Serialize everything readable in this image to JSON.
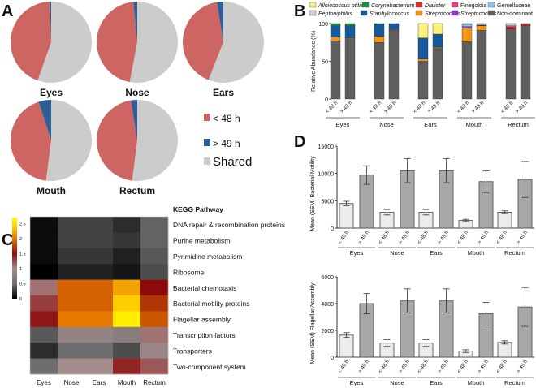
{
  "panels": {
    "a": "A",
    "b": "B",
    "c": "C",
    "d": "D"
  },
  "chart_data": [
    {
      "type": "pie",
      "panel": "A",
      "legend": [
        {
          "label": "< 48 h",
          "color": "#cd6662"
        },
        {
          "label": "> 49 h",
          "color": "#2b5f96"
        },
        {
          "label": "Shared",
          "color": "#cccccc"
        }
      ],
      "pies": [
        {
          "name": "Eyes",
          "values": {
            "shared": 55.4,
            "lt48": 44.0,
            "gt49": 0.6
          }
        },
        {
          "name": "Nose",
          "values": {
            "shared": 53.0,
            "lt48": 45.5,
            "gt49": 1.5
          }
        },
        {
          "name": "Ears",
          "values": {
            "shared": 56.0,
            "lt48": 41.5,
            "gt49": 2.5
          }
        },
        {
          "name": "Mouth",
          "values": {
            "shared": 52.0,
            "lt48": 43.0,
            "gt49": 5.0
          }
        },
        {
          "name": "Rectum",
          "values": {
            "shared": 52.0,
            "lt48": 45.5,
            "gt49": 2.5
          }
        }
      ]
    },
    {
      "type": "bar",
      "stacked": true,
      "panel": "B",
      "ylabel": "Relative Abundance (%)",
      "ylim": [
        0,
        100
      ],
      "yticks": [
        "0",
        "50",
        "100"
      ],
      "legend": [
        {
          "key": "allo",
          "label": "Alloiococcus otitis",
          "color": "#fbf27c",
          "italic": true
        },
        {
          "key": "coryne",
          "label": "Corynebacterium",
          "color": "#14923c",
          "italic": true
        },
        {
          "key": "dial",
          "label": "Dialister",
          "color": "#ee2a1c",
          "italic": true
        },
        {
          "key": "fine",
          "label": "Finegoldia",
          "color": "#ee3a8c",
          "italic": false
        },
        {
          "key": "gem",
          "label": "Gemellaceae",
          "color": "#7ecbf0",
          "italic": false
        },
        {
          "key": "pepto",
          "label": "Peptoniphilus",
          "color": "#cfcfcf",
          "italic": true
        },
        {
          "key": "staph",
          "label": "Staphylococcus",
          "color": "#155a9c",
          "italic": true
        },
        {
          "key": "strep",
          "label": "Streptococcus",
          "color": "#f7930f",
          "italic": true
        },
        {
          "key": "strep2",
          "label": "Streptococcus",
          "color": "#8c3bd6",
          "italic": true
        },
        {
          "key": "nondom",
          "label": "Non-dominant",
          "color": "#5f5f5f",
          "italic": false
        }
      ],
      "stack_order": [
        "nondom",
        "strep",
        "strep2",
        "staph",
        "coryne",
        "allo",
        "gem",
        "dial",
        "fine",
        "pepto"
      ],
      "groups": [
        {
          "name": "Eyes",
          "bars": [
            {
              "label": "< 48 h",
              "values": {
                "nondom": 77,
                "strep": 5,
                "staph": 15,
                "coryne": 3
              }
            },
            {
              "label": "> 49 h",
              "values": {
                "nondom": 80,
                "strep": 1,
                "staph": 16,
                "coryne": 3
              }
            }
          ]
        },
        {
          "name": "Nose",
          "bars": [
            {
              "label": "< 48 h",
              "values": {
                "nondom": 75,
                "strep": 8,
                "staph": 16,
                "coryne": 1
              }
            },
            {
              "label": "> 49 h",
              "values": {
                "nondom": 91,
                "strep": 1,
                "staph": 8
              }
            }
          ]
        },
        {
          "name": "Ears",
          "bars": [
            {
              "label": "< 48 h",
              "values": {
                "nondom": 50,
                "strep": 3,
                "staph": 28,
                "allo": 19
              }
            },
            {
              "label": "> 49 h",
              "values": {
                "nondom": 68,
                "strep": 1,
                "staph": 17,
                "allo": 14
              }
            }
          ]
        },
        {
          "name": "Mouth",
          "bars": [
            {
              "label": "< 48 h",
              "values": {
                "nondom": 76,
                "strep": 18,
                "strep2": 2,
                "gem": 3,
                "pepto": 1
              }
            },
            {
              "label": "> 49 h",
              "values": {
                "nondom": 91,
                "strep": 6,
                "staph": 1,
                "pepto": 2
              }
            }
          ]
        },
        {
          "name": "Rectum",
          "bars": [
            {
              "label": "< 48 h",
              "values": {
                "nondom": 93,
                "dial": 2,
                "fine": 2,
                "pepto": 3
              }
            },
            {
              "label": "> 49 h",
              "values": {
                "nondom": 97,
                "dial": 2,
                "pepto": 1
              }
            }
          ]
        }
      ]
    },
    {
      "type": "heatmap",
      "panel": "C",
      "title": "KEGG Pathway",
      "columns": [
        "Eyes",
        "Nose",
        "Ears",
        "Mouth",
        "Rectum"
      ],
      "rows": [
        "DNA repair & recombination proteins",
        "Purine metabolism",
        "Pyrimidine metabolism",
        "Ribosome",
        "Bacterial chemotaxis",
        "Bacterial motility proteins",
        "Flagellar assembly",
        "Transcription factors",
        "Transporters",
        "Two-component system"
      ],
      "values": [
        [
          0.05,
          0.3,
          0.3,
          0.2,
          0.45
        ],
        [
          0.05,
          0.3,
          0.3,
          0.25,
          0.45
        ],
        [
          0.05,
          0.25,
          0.25,
          0.15,
          0.4
        ],
        [
          0.0,
          0.15,
          0.15,
          0.1,
          0.35
        ],
        [
          1.1,
          1.9,
          1.9,
          2.2,
          1.5
        ],
        [
          1.3,
          1.9,
          1.9,
          2.4,
          1.7
        ],
        [
          1.45,
          2.0,
          2.0,
          2.6,
          1.85
        ],
        [
          0.4,
          0.85,
          0.85,
          0.75,
          1.1
        ],
        [
          0.2,
          0.5,
          0.5,
          0.35,
          0.9
        ],
        [
          0.5,
          1.0,
          1.0,
          1.4,
          1.2
        ]
      ],
      "colorbar_ticks": [
        "0",
        "0.5",
        "1",
        "1.5",
        "2",
        "2.5"
      ],
      "range": [
        0,
        2.7
      ]
    },
    {
      "type": "bar",
      "panel": "D",
      "ylabel": "Mean (SEM) Bacterial Motility",
      "ylim": [
        0,
        15000
      ],
      "yticks": [
        "0",
        "5000",
        "10000",
        "15000"
      ],
      "groups": [
        {
          "name": "Eyes",
          "bars": [
            {
              "label": "< 48 h",
              "value": 4500,
              "sem": 400
            },
            {
              "label": "> 49 h",
              "value": 9700,
              "sem": 1700
            }
          ]
        },
        {
          "name": "Nose",
          "bars": [
            {
              "label": "< 48 h",
              "value": 2900,
              "sem": 500
            },
            {
              "label": "> 49 h",
              "value": 10500,
              "sem": 2200
            }
          ]
        },
        {
          "name": "Ears",
          "bars": [
            {
              "label": "< 48 h",
              "value": 2900,
              "sem": 500
            },
            {
              "label": "> 49 h",
              "value": 10500,
              "sem": 2200
            }
          ]
        },
        {
          "name": "Mouth",
          "bars": [
            {
              "label": "< 48 h",
              "value": 1400,
              "sem": 200
            },
            {
              "label": "> 49 h",
              "value": 8500,
              "sem": 2000
            }
          ]
        },
        {
          "name": "Rectum",
          "bars": [
            {
              "label": "< 48 h",
              "value": 2900,
              "sem": 250
            },
            {
              "label": "> 49 h",
              "value": 8900,
              "sem": 3300
            }
          ]
        }
      ]
    },
    {
      "type": "bar",
      "panel": "D",
      "ylabel": "Mean (SEM) Flagellar Assembly",
      "ylim": [
        0,
        6000
      ],
      "yticks": [
        "0",
        "2000",
        "4000",
        "6000"
      ],
      "groups": [
        {
          "name": "Eyes",
          "bars": [
            {
              "label": "< 48 h",
              "value": 1650,
              "sem": 180
            },
            {
              "label": "> 49 h",
              "value": 4000,
              "sem": 750
            }
          ]
        },
        {
          "name": "Nose",
          "bars": [
            {
              "label": "< 48 h",
              "value": 1050,
              "sem": 250
            },
            {
              "label": "> 49 h",
              "value": 4200,
              "sem": 900
            }
          ]
        },
        {
          "name": "Ears",
          "bars": [
            {
              "label": "< 48 h",
              "value": 1050,
              "sem": 250
            },
            {
              "label": "> 49 h",
              "value": 4200,
              "sem": 900
            }
          ]
        },
        {
          "name": "Mouth",
          "bars": [
            {
              "label": "< 48 h",
              "value": 450,
              "sem": 100
            },
            {
              "label": "> 49 h",
              "value": 3250,
              "sem": 850
            }
          ]
        },
        {
          "name": "Rectum",
          "bars": [
            {
              "label": "< 48 h",
              "value": 1100,
              "sem": 120
            },
            {
              "label": "> 49 h",
              "value": 3750,
              "sem": 1450
            }
          ]
        }
      ]
    }
  ]
}
